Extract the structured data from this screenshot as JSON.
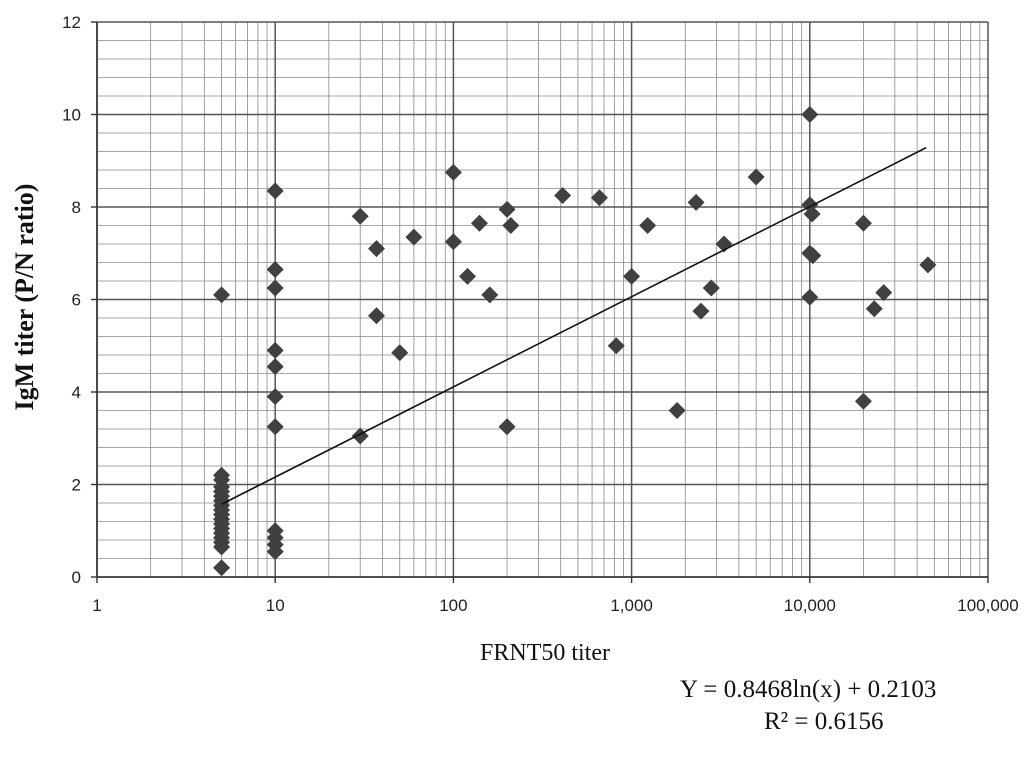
{
  "chart_data": {
    "type": "scatter",
    "title": "",
    "xlabel": "FRNT50 titer",
    "ylabel": "IgM titer (P/N ratio)",
    "x_scale": "log",
    "xlim": [
      1,
      100000
    ],
    "ylim": [
      0,
      12
    ],
    "x_ticks": [
      1,
      10,
      100,
      1000,
      10000,
      100000
    ],
    "x_tick_labels": [
      "1",
      "10",
      "100",
      "1,000",
      "10,000",
      "100,000"
    ],
    "y_ticks": [
      0,
      2,
      4,
      6,
      8,
      10,
      12
    ],
    "y_tick_labels": [
      "0",
      "2",
      "4",
      "6",
      "8",
      "10",
      "12"
    ],
    "grid": true,
    "marker": "diamond",
    "marker_color": "#404040",
    "line_color": "#111111",
    "points": [
      [
        5,
        0.2
      ],
      [
        5,
        0.65
      ],
      [
        5,
        0.75
      ],
      [
        5,
        0.85
      ],
      [
        5,
        0.95
      ],
      [
        5,
        1.05
      ],
      [
        5,
        1.15
      ],
      [
        5,
        1.25
      ],
      [
        5,
        1.35
      ],
      [
        5,
        1.45
      ],
      [
        5,
        1.55
      ],
      [
        5,
        1.65
      ],
      [
        5,
        1.75
      ],
      [
        5,
        1.85
      ],
      [
        5,
        1.95
      ],
      [
        5,
        2.1
      ],
      [
        5,
        2.2
      ],
      [
        5,
        6.1
      ],
      [
        10,
        0.55
      ],
      [
        10,
        0.7
      ],
      [
        10,
        0.85
      ],
      [
        10,
        1.0
      ],
      [
        10,
        3.25
      ],
      [
        10,
        3.9
      ],
      [
        10,
        4.55
      ],
      [
        10,
        4.9
      ],
      [
        10,
        6.25
      ],
      [
        10,
        6.65
      ],
      [
        10,
        8.35
      ],
      [
        30,
        3.05
      ],
      [
        30,
        7.8
      ],
      [
        37,
        7.1
      ],
      [
        37,
        5.65
      ],
      [
        50,
        4.85
      ],
      [
        60,
        7.35
      ],
      [
        100,
        8.75
      ],
      [
        100,
        7.25
      ],
      [
        120,
        6.5
      ],
      [
        140,
        7.65
      ],
      [
        160,
        6.1
      ],
      [
        200,
        7.95
      ],
      [
        210,
        7.6
      ],
      [
        200,
        3.25
      ],
      [
        410,
        8.25
      ],
      [
        660,
        8.2
      ],
      [
        820,
        5.0
      ],
      [
        1000,
        6.5
      ],
      [
        1230,
        7.6
      ],
      [
        1800,
        3.6
      ],
      [
        2300,
        8.1
      ],
      [
        2450,
        5.75
      ],
      [
        2800,
        6.25
      ],
      [
        3300,
        7.2
      ],
      [
        5000,
        8.65
      ],
      [
        10000,
        10.0
      ],
      [
        10000,
        8.05
      ],
      [
        10300,
        7.85
      ],
      [
        10000,
        7.0
      ],
      [
        10400,
        6.95
      ],
      [
        10000,
        6.05
      ],
      [
        20000,
        7.65
      ],
      [
        20000,
        3.8
      ],
      [
        23000,
        5.8
      ],
      [
        26000,
        6.15
      ],
      [
        46000,
        6.75
      ]
    ],
    "trendline": {
      "x_from": 5,
      "x_to": 45000,
      "slope": 0.8468,
      "intercept": 0.2103,
      "type": "logarithmic"
    },
    "annotations": [
      "Y = 0.8468ln(x)  + 0.2103",
      "R² = 0.6156"
    ]
  }
}
